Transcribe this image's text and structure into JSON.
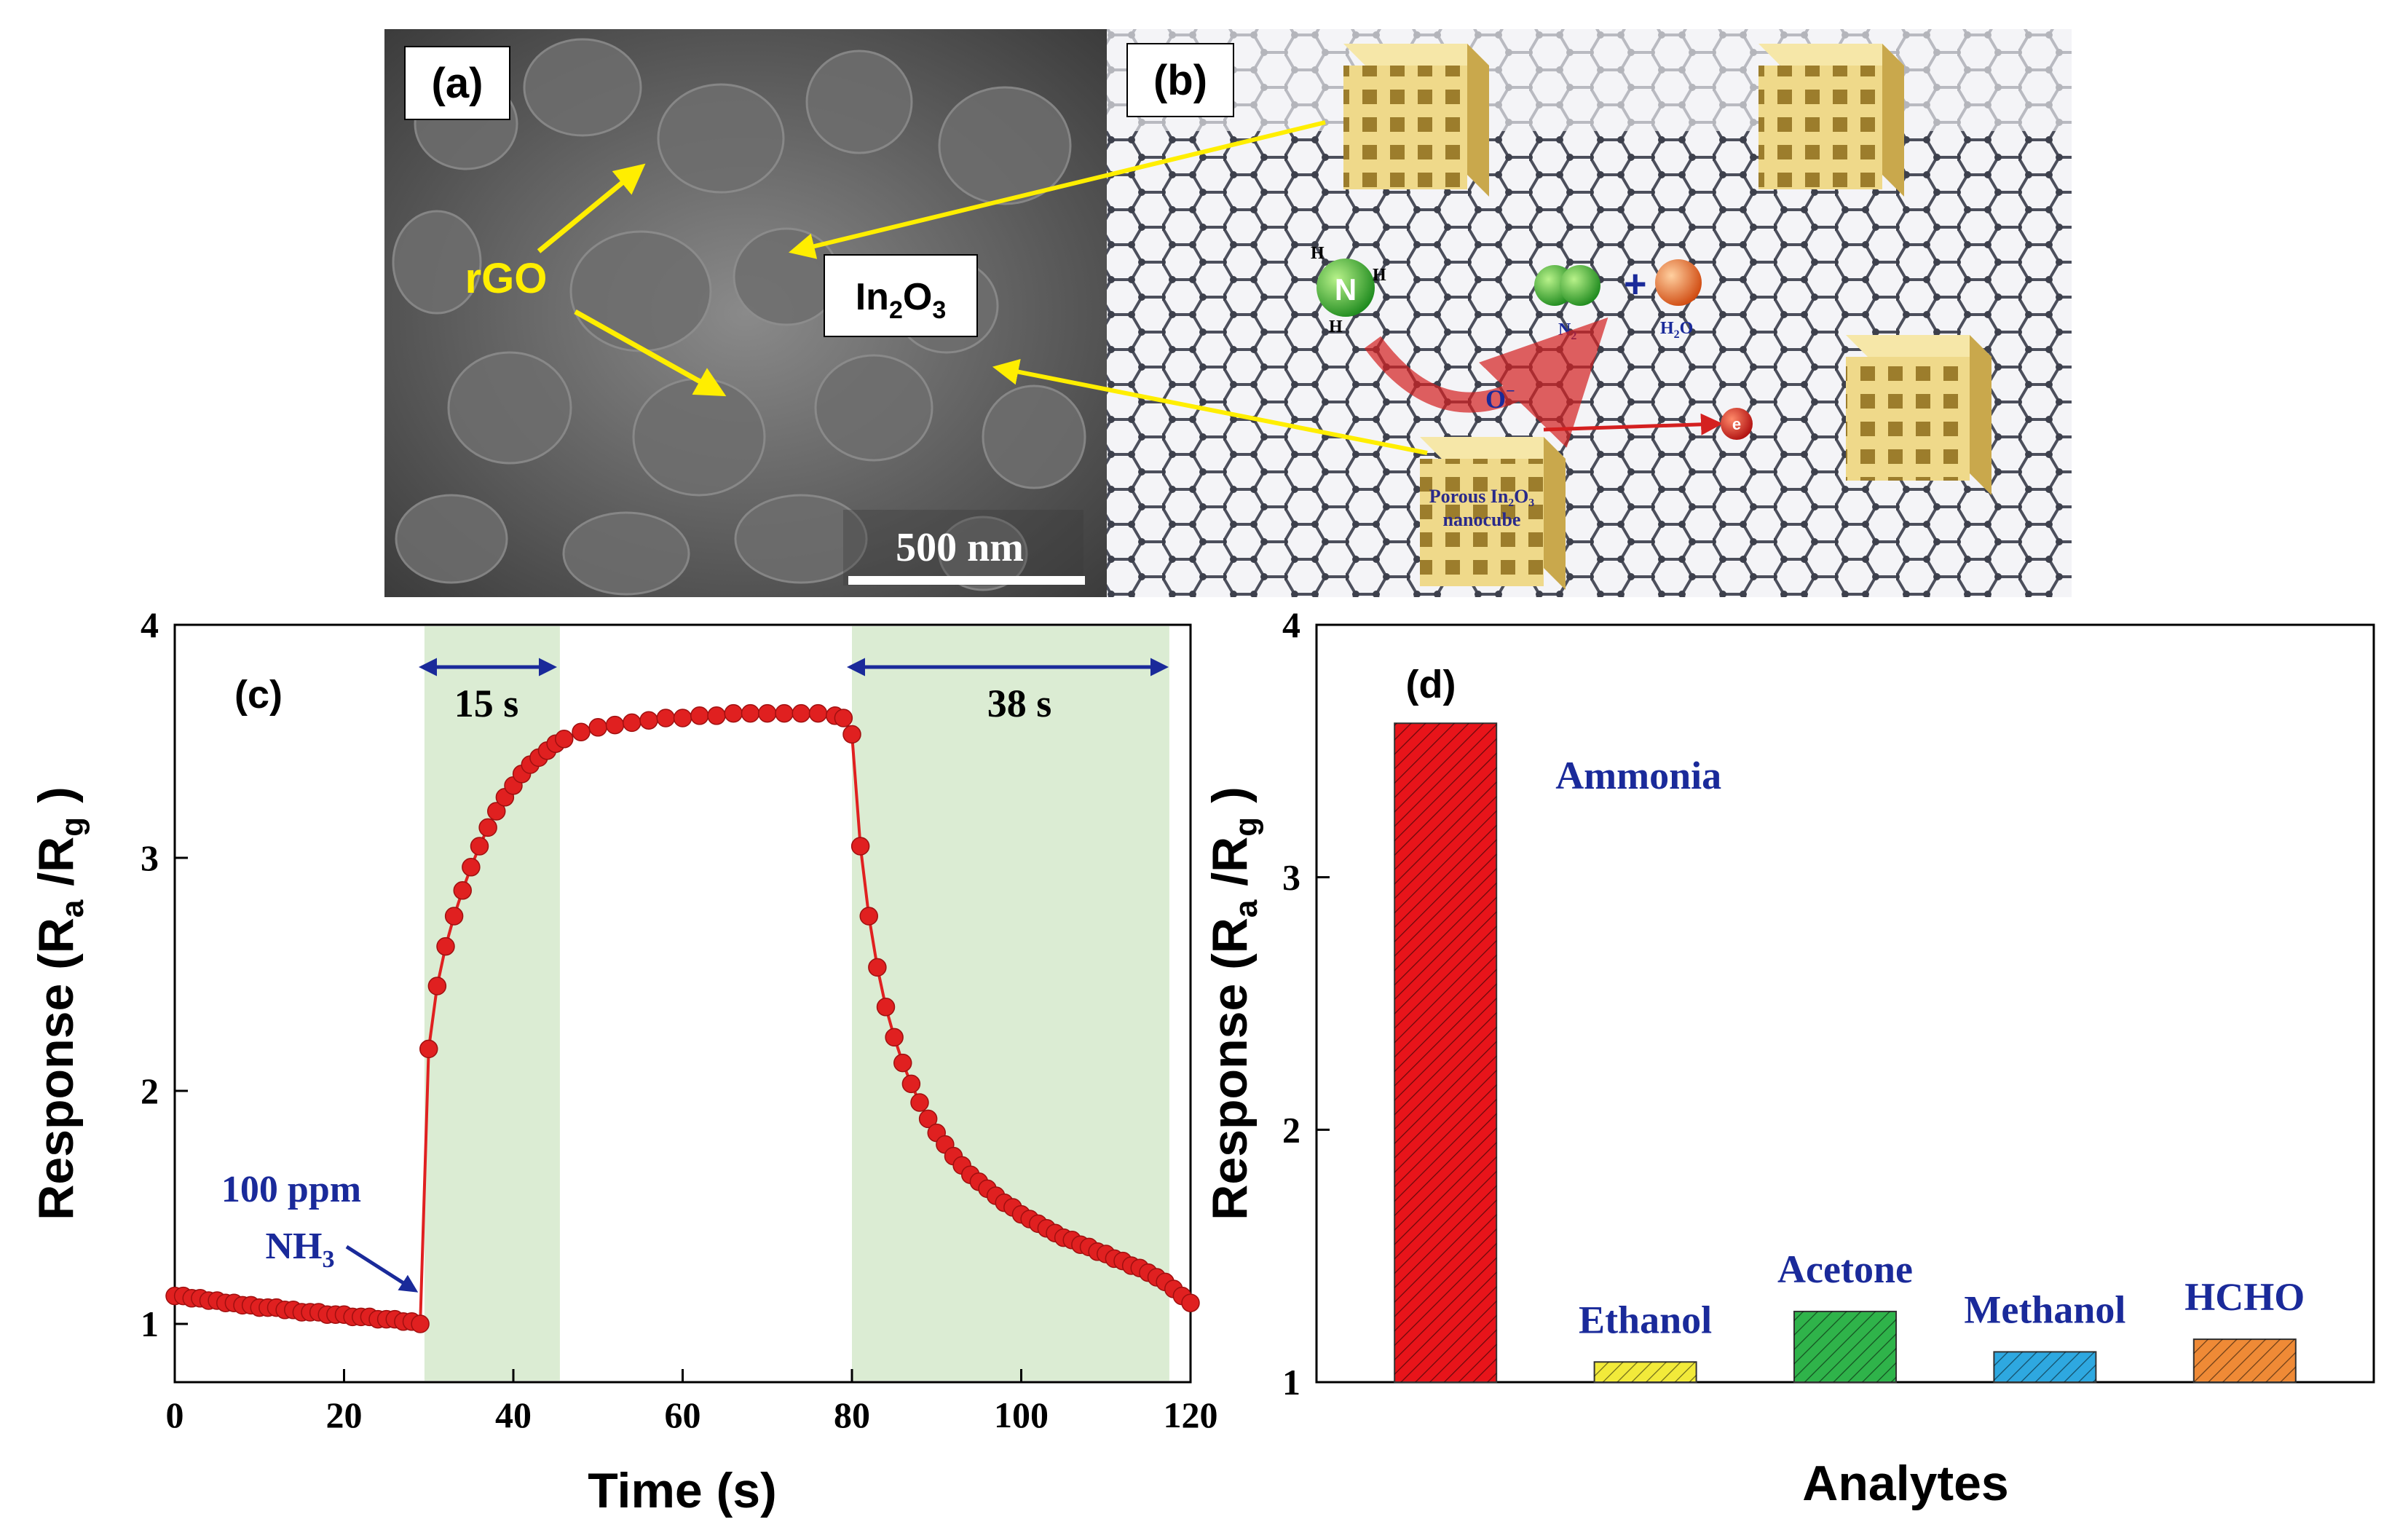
{
  "panels": {
    "a": {
      "label": "(a)",
      "annotation_rgo": "rGO",
      "annotation_in2o3_base": "In",
      "annotation_in2o3_sub1": "2",
      "annotation_in2o3_mid": "O",
      "annotation_in2o3_sub2": "3",
      "scale_bar": "500 nm"
    },
    "b": {
      "label": "(b)",
      "atom_n": "N",
      "atom_h": "H",
      "product_n2_base": "N",
      "product_n2_sub": "2",
      "product_h2o_base": "H",
      "product_h2o_sub": "2",
      "product_h2o_tail": "O",
      "oxygen_ion": "O",
      "oxygen_ion_sup": "−",
      "electron": "e",
      "plus_sign": "+",
      "nanocube_label_line1": "Porous In₂O₃",
      "nanocube_label_line2": "nanocube"
    }
  },
  "chart_data": [
    {
      "id": "c",
      "type": "line",
      "panel_label": "(c)",
      "xlabel": "Time (s)",
      "ylabel_base": "Response (R",
      "ylabel_sub1": "a",
      "ylabel_mid": " /R",
      "ylabel_sub2": "g",
      "ylabel_tail": " )",
      "xlim": [
        0,
        120
      ],
      "ylim": [
        0.75,
        4
      ],
      "xticks": [
        0,
        20,
        40,
        60,
        80,
        100,
        120
      ],
      "yticks": [
        1,
        2,
        3,
        4
      ],
      "shaded_regions": [
        [
          29.5,
          45.5
        ],
        [
          80,
          117.5
        ]
      ],
      "annotations": {
        "response_time": "15 s",
        "recovery_time": "38 s",
        "gas_line1": "100 ppm",
        "gas_line2_base": "NH",
        "gas_line2_sub": "3"
      },
      "series": [
        {
          "x": [
            0,
            1,
            2,
            3,
            4,
            5,
            6,
            7,
            8,
            9,
            10,
            11,
            12,
            13,
            14,
            15,
            16,
            17,
            18,
            19,
            20,
            21,
            22,
            23,
            24,
            25,
            26,
            27,
            28,
            29,
            30,
            31,
            32,
            33,
            34,
            35,
            36,
            37,
            38,
            39,
            40,
            41,
            42,
            43,
            44,
            45,
            46,
            48,
            50,
            52,
            54,
            56,
            58,
            60,
            62,
            64,
            66,
            68,
            70,
            72,
            74,
            76,
            78,
            79,
            80,
            81,
            82,
            83,
            84,
            85,
            86,
            87,
            88,
            89,
            90,
            91,
            92,
            93,
            94,
            95,
            96,
            97,
            98,
            99,
            100,
            101,
            102,
            103,
            104,
            105,
            106,
            107,
            108,
            109,
            110,
            111,
            112,
            113,
            114,
            115,
            116,
            117,
            118,
            119,
            120
          ],
          "y": [
            1.12,
            1.12,
            1.11,
            1.11,
            1.1,
            1.1,
            1.09,
            1.09,
            1.08,
            1.08,
            1.07,
            1.07,
            1.07,
            1.06,
            1.06,
            1.05,
            1.05,
            1.05,
            1.04,
            1.04,
            1.04,
            1.03,
            1.03,
            1.03,
            1.02,
            1.02,
            1.02,
            1.01,
            1.01,
            1.0,
            2.18,
            2.45,
            2.62,
            2.75,
            2.86,
            2.96,
            3.05,
            3.13,
            3.2,
            3.26,
            3.31,
            3.36,
            3.4,
            3.43,
            3.46,
            3.49,
            3.51,
            3.54,
            3.56,
            3.57,
            3.58,
            3.59,
            3.6,
            3.6,
            3.61,
            3.61,
            3.62,
            3.62,
            3.62,
            3.62,
            3.62,
            3.62,
            3.61,
            3.6,
            3.53,
            3.05,
            2.75,
            2.53,
            2.36,
            2.23,
            2.12,
            2.03,
            1.95,
            1.88,
            1.82,
            1.77,
            1.72,
            1.68,
            1.64,
            1.61,
            1.58,
            1.55,
            1.52,
            1.5,
            1.47,
            1.45,
            1.43,
            1.41,
            1.39,
            1.37,
            1.36,
            1.34,
            1.33,
            1.31,
            1.3,
            1.28,
            1.27,
            1.25,
            1.24,
            1.22,
            1.2,
            1.18,
            1.15,
            1.12,
            1.09
          ]
        }
      ],
      "color": "#e02020"
    },
    {
      "id": "d",
      "type": "bar",
      "panel_label": "(d)",
      "xlabel": "Analytes",
      "ylabel_base": "Response (R",
      "ylabel_sub1": "a",
      "ylabel_mid": " /R",
      "ylabel_sub2": "g",
      "ylabel_tail": " )",
      "ylim": [
        1,
        4
      ],
      "yticks": [
        1,
        2,
        3,
        4
      ],
      "categories": [
        "Ammonia",
        "Ethanol",
        "Acetone",
        "Methanol",
        "HCHO"
      ],
      "values": [
        3.61,
        1.08,
        1.28,
        1.12,
        1.17
      ],
      "colors": [
        "#e8141a",
        "#f2ea3a",
        "#2fb34a",
        "#2ea8e0",
        "#ef8a36"
      ]
    }
  ]
}
